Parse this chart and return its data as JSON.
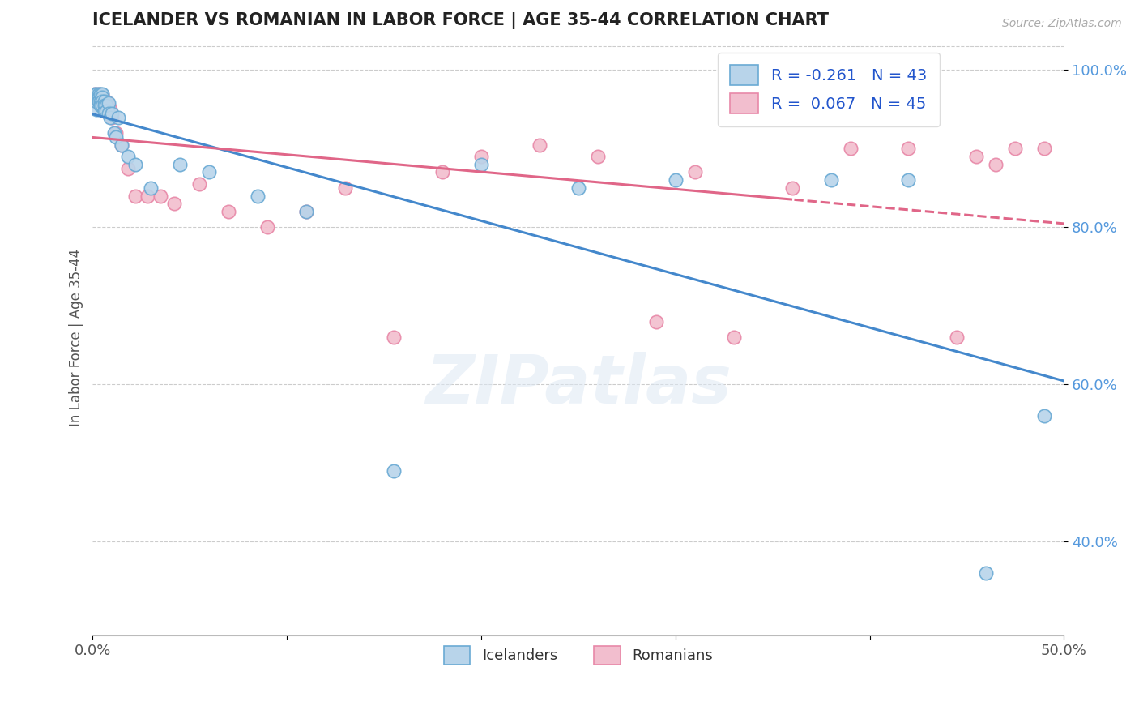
{
  "title": "ICELANDER VS ROMANIAN IN LABOR FORCE | AGE 35-44 CORRELATION CHART",
  "source_text": "Source: ZipAtlas.com",
  "ylabel_text": "In Labor Force | Age 35-44",
  "xlim": [
    0.0,
    0.5
  ],
  "ylim": [
    0.28,
    1.04
  ],
  "x_ticks": [
    0.0,
    0.1,
    0.2,
    0.3,
    0.4,
    0.5
  ],
  "x_tick_labels": [
    "0.0%",
    "",
    "",
    "",
    "",
    "50.0%"
  ],
  "y_ticks": [
    0.4,
    0.6,
    0.8,
    1.0
  ],
  "y_tick_labels": [
    "40.0%",
    "60.0%",
    "80.0%",
    "100.0%"
  ],
  "icelander_color": "#b8d4ea",
  "icelander_edge_color": "#6aaad4",
  "romanian_color": "#f2bece",
  "romanian_edge_color": "#e888a8",
  "icelander_R": -0.261,
  "icelander_N": 43,
  "romanian_R": 0.067,
  "romanian_N": 45,
  "icelander_line_color": "#4488cc",
  "romanian_line_color": "#e06688",
  "legend_label_icelander": "Icelanders",
  "legend_label_romanian": "Romanians",
  "watermark_text": "ZIPatlas",
  "icelander_x": [
    0.001,
    0.002,
    0.002,
    0.002,
    0.003,
    0.003,
    0.003,
    0.003,
    0.004,
    0.004,
    0.004,
    0.005,
    0.005,
    0.005,
    0.005,
    0.006,
    0.006,
    0.006,
    0.007,
    0.007,
    0.008,
    0.008,
    0.009,
    0.01,
    0.011,
    0.012,
    0.013,
    0.015,
    0.018,
    0.022,
    0.03,
    0.045,
    0.06,
    0.085,
    0.11,
    0.155,
    0.2,
    0.25,
    0.3,
    0.38,
    0.42,
    0.46,
    0.49
  ],
  "icelander_y": [
    0.97,
    0.95,
    0.97,
    0.96,
    0.97,
    0.965,
    0.96,
    0.96,
    0.97,
    0.96,
    0.955,
    0.97,
    0.965,
    0.96,
    0.955,
    0.96,
    0.955,
    0.948,
    0.955,
    0.948,
    0.958,
    0.945,
    0.94,
    0.945,
    0.92,
    0.915,
    0.94,
    0.905,
    0.89,
    0.88,
    0.85,
    0.88,
    0.87,
    0.84,
    0.82,
    0.49,
    0.88,
    0.85,
    0.86,
    0.86,
    0.86,
    0.36,
    0.56
  ],
  "romanian_x": [
    0.001,
    0.002,
    0.002,
    0.003,
    0.003,
    0.003,
    0.004,
    0.004,
    0.005,
    0.005,
    0.006,
    0.006,
    0.007,
    0.007,
    0.008,
    0.009,
    0.01,
    0.012,
    0.015,
    0.018,
    0.022,
    0.028,
    0.035,
    0.042,
    0.055,
    0.07,
    0.09,
    0.11,
    0.13,
    0.155,
    0.18,
    0.2,
    0.23,
    0.26,
    0.29,
    0.31,
    0.33,
    0.36,
    0.39,
    0.42,
    0.445,
    0.455,
    0.465,
    0.475,
    0.49
  ],
  "romanian_y": [
    0.97,
    0.965,
    0.96,
    0.97,
    0.965,
    0.96,
    0.965,
    0.955,
    0.968,
    0.955,
    0.958,
    0.948,
    0.96,
    0.948,
    0.955,
    0.95,
    0.94,
    0.92,
    0.905,
    0.875,
    0.84,
    0.84,
    0.84,
    0.83,
    0.855,
    0.82,
    0.8,
    0.82,
    0.85,
    0.66,
    0.87,
    0.89,
    0.905,
    0.89,
    0.68,
    0.87,
    0.66,
    0.85,
    0.9,
    0.9,
    0.66,
    0.89,
    0.88,
    0.9,
    0.9
  ]
}
